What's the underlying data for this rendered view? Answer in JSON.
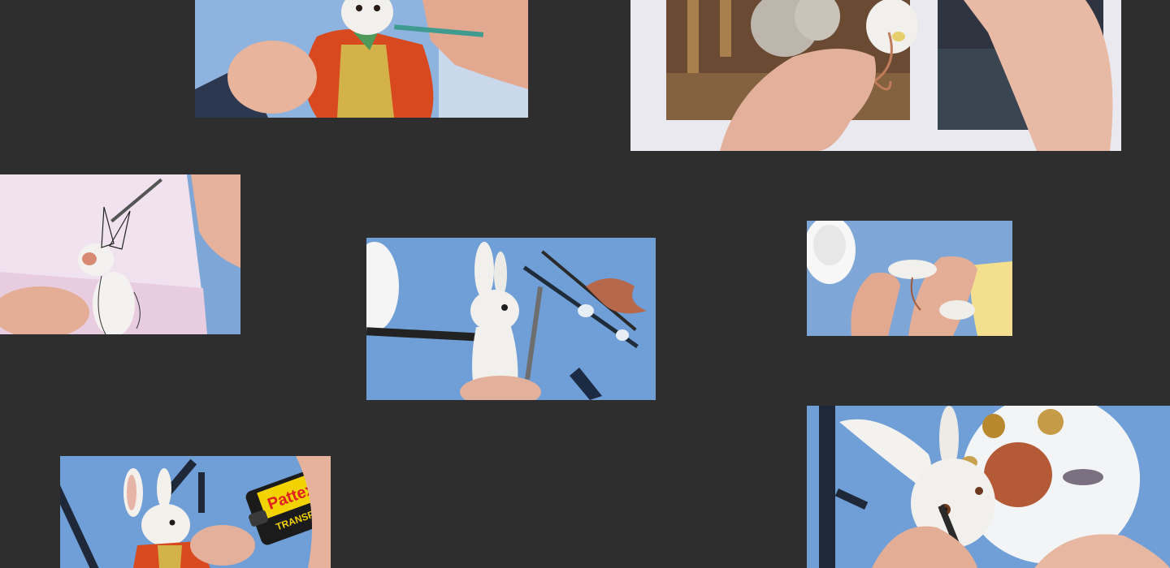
{
  "gallery": {
    "photos": [
      {
        "id": "photo-1",
        "description_name": "painting-rabbit-jacket"
      },
      {
        "id": "photo-2",
        "description_name": "rabbit-head-wire-armature-reference"
      },
      {
        "id": "photo-3",
        "description_name": "sketching-rabbit-on-paper"
      },
      {
        "id": "photo-4",
        "description_name": "sculpting-white-rabbit-with-tool"
      },
      {
        "id": "photo-5",
        "description_name": "shaping-small-rabbit-body"
      },
      {
        "id": "photo-6",
        "description_name": "gluing-rabbit-figure"
      },
      {
        "id": "photo-7",
        "description_name": "painting-rabbit-eye"
      }
    ]
  },
  "glue_tube": {
    "brand": "Pattex",
    "label": "TRANSPAR"
  },
  "colors": {
    "background": "#2e2e2e",
    "table_blue": "#6f9fd6",
    "jacket_orange": "#d8491f",
    "vest_yellow": "#d4b24a",
    "clay_white": "#f2f0ec",
    "skin": "#e8b49b"
  }
}
